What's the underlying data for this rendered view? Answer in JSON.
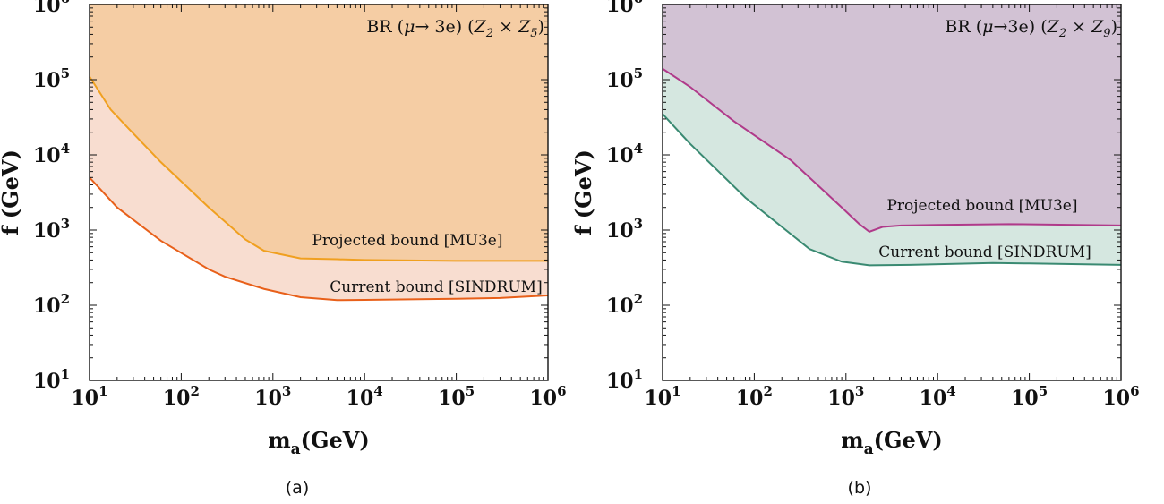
{
  "chart_data": [
    {
      "type": "area",
      "caption": "(a)",
      "xlabel_main": "m",
      "xlabel_sub": "a",
      "xlabel_unit": "(GeV)",
      "ylabel": "f (GeV)",
      "x_scale": "log",
      "y_scale": "log",
      "xlim": [
        10,
        1000000
      ],
      "ylim": [
        10,
        1000000
      ],
      "x_ticks": [
        {
          "base": "10",
          "exp": "1",
          "value": 10
        },
        {
          "base": "10",
          "exp": "2",
          "value": 100
        },
        {
          "base": "10",
          "exp": "3",
          "value": 1000
        },
        {
          "base": "10",
          "exp": "4",
          "value": 10000
        },
        {
          "base": "10",
          "exp": "5",
          "value": 100000
        },
        {
          "base": "10",
          "exp": "6",
          "value": 1000000
        }
      ],
      "y_ticks": [
        {
          "base": "10",
          "exp": "1",
          "value": 10
        },
        {
          "base": "10",
          "exp": "2",
          "value": 100
        },
        {
          "base": "10",
          "exp": "3",
          "value": 1000
        },
        {
          "base": "10",
          "exp": "4",
          "value": 10000
        },
        {
          "base": "10",
          "exp": "5",
          "value": 100000
        },
        {
          "base": "10",
          "exp": "6",
          "value": 1000000
        }
      ],
      "title_parts": [
        "BR (",
        "μ",
        "→ 3e) (",
        "Z",
        "2",
        " × ",
        "Z",
        "5",
        ")"
      ],
      "fill_above_projected": "#f5cda4",
      "fill_between": "#f8ddd0",
      "series": [
        {
          "label": "Projected bound  [MU3e]",
          "color": "#f0a020",
          "x": [
            10,
            17,
            27,
            60,
            200,
            500,
            800,
            2000,
            5000,
            10000,
            100000,
            1000000
          ],
          "y": [
            110000,
            40000,
            22000,
            8000,
            2000,
            750,
            530,
            420,
            410,
            400,
            390,
            390
          ]
        },
        {
          "label": "Current bound  [SINDRUM]",
          "color": "#e8601a",
          "x": [
            10,
            20,
            60,
            200,
            300,
            800,
            2000,
            5000,
            10000,
            100000,
            300000,
            1000000
          ],
          "y": [
            5000,
            2000,
            720,
            300,
            240,
            165,
            128,
            117,
            118,
            122,
            125,
            135
          ]
        }
      ]
    },
    {
      "type": "area",
      "caption": "(b)",
      "xlabel_main": "m",
      "xlabel_sub": "a",
      "xlabel_unit": "(GeV)",
      "ylabel": "f (GeV)",
      "x_scale": "log",
      "y_scale": "log",
      "xlim": [
        10,
        1000000
      ],
      "ylim": [
        10,
        1000000
      ],
      "x_ticks": [
        {
          "base": "10",
          "exp": "1",
          "value": 10
        },
        {
          "base": "10",
          "exp": "2",
          "value": 100
        },
        {
          "base": "10",
          "exp": "3",
          "value": 1000
        },
        {
          "base": "10",
          "exp": "4",
          "value": 10000
        },
        {
          "base": "10",
          "exp": "5",
          "value": 100000
        },
        {
          "base": "10",
          "exp": "6",
          "value": 1000000
        }
      ],
      "y_ticks": [
        {
          "base": "10",
          "exp": "1",
          "value": 10
        },
        {
          "base": "10",
          "exp": "2",
          "value": 100
        },
        {
          "base": "10",
          "exp": "3",
          "value": 1000
        },
        {
          "base": "10",
          "exp": "4",
          "value": 10000
        },
        {
          "base": "10",
          "exp": "5",
          "value": 100000
        },
        {
          "base": "10",
          "exp": "6",
          "value": 1000000
        }
      ],
      "title_parts": [
        "BR (",
        "μ",
        "→3e) (",
        "Z",
        "2",
        " × ",
        "Z",
        "9",
        ")"
      ],
      "fill_above_projected": "#d2c2d4",
      "fill_between": "#d5e7e0",
      "series": [
        {
          "label": "Projected bound [MU3e]",
          "color": "#b03a8a",
          "x": [
            10,
            20,
            60,
            250,
            900,
            1400,
            1800,
            2500,
            4000,
            10000,
            60000,
            1000000
          ],
          "y": [
            140000,
            80000,
            28000,
            8500,
            2000,
            1200,
            950,
            1100,
            1150,
            1170,
            1200,
            1150
          ],
          "kink_label_index": 6
        },
        {
          "label": "Current bound [SINDRUM]",
          "color": "#3a8a72",
          "x": [
            10,
            20,
            80,
            400,
            900,
            1800,
            5000,
            40000,
            100000,
            1000000
          ],
          "y": [
            35000,
            14000,
            2700,
            560,
            380,
            340,
            345,
            365,
            360,
            345
          ]
        }
      ]
    }
  ]
}
